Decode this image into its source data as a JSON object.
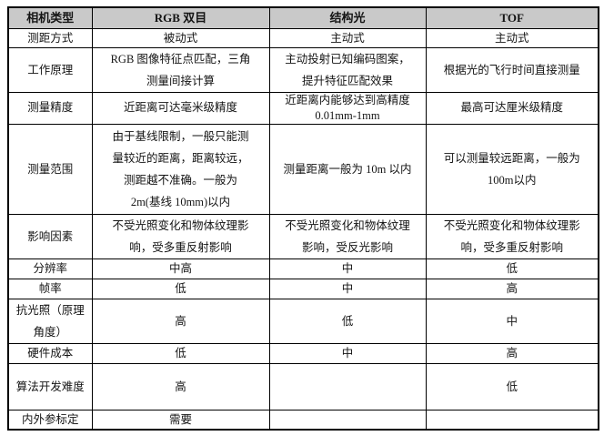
{
  "colors": {
    "header_background": "#c9c9c9",
    "border": "#000000",
    "text": "#141414"
  },
  "table": {
    "header": {
      "camera_type": "相机类型",
      "rgb_stereo": "RGB 双目",
      "structured_light": "结构光",
      "tof": "TOF"
    },
    "rows": [
      {
        "label": "测距方式",
        "rgb": "被动式",
        "structured": "主动式",
        "tof": "主动式"
      },
      {
        "label": "工作原理",
        "rgb": "RGB 图像特征点匹配，三角测量间接计算",
        "structured": "主动投射已知编码图案，提升特征匹配效果",
        "tof": "根据光的飞行时间直接测量"
      },
      {
        "label": "测量精度",
        "rgb": "近距离可达毫米级精度",
        "structured": "近距离内能够达到高精度 0.01mm-1mm",
        "tof": "最高可达厘米级精度"
      },
      {
        "label": "测量范围",
        "rgb": "由于基线限制，一般只能测量较近的距离，距离较远，测距越不准确。一般为 2m(基线 10mm)以内",
        "structured": "测量距离一般为 10m 以内",
        "tof": "可以测量较远距离，一般为 100m以内"
      },
      {
        "label": "影响因素",
        "rgb": "不受光照变化和物体纹理影响，受多重反射影响",
        "structured": "不受光照变化和物体纹理影响，受反光影响",
        "tof": "不受光照变化和物体纹理影响，受多重反射影响"
      },
      {
        "label": "分辨率",
        "rgb": "中高",
        "structured": "中",
        "tof": "低"
      },
      {
        "label": "帧率",
        "rgb": "低",
        "structured": "中",
        "tof": "高"
      },
      {
        "label": "抗光照（原理角度）",
        "rgb": "高",
        "structured": "低",
        "tof": "中"
      },
      {
        "label": "硬件成本",
        "rgb": "低",
        "structured": "中",
        "tof": "高"
      },
      {
        "label": "算法开发难度",
        "rgb": "高",
        "structured": "",
        "tof": "低"
      },
      {
        "label": "内外参标定",
        "rgb": "需要",
        "structured": "",
        "tof": ""
      }
    ]
  }
}
